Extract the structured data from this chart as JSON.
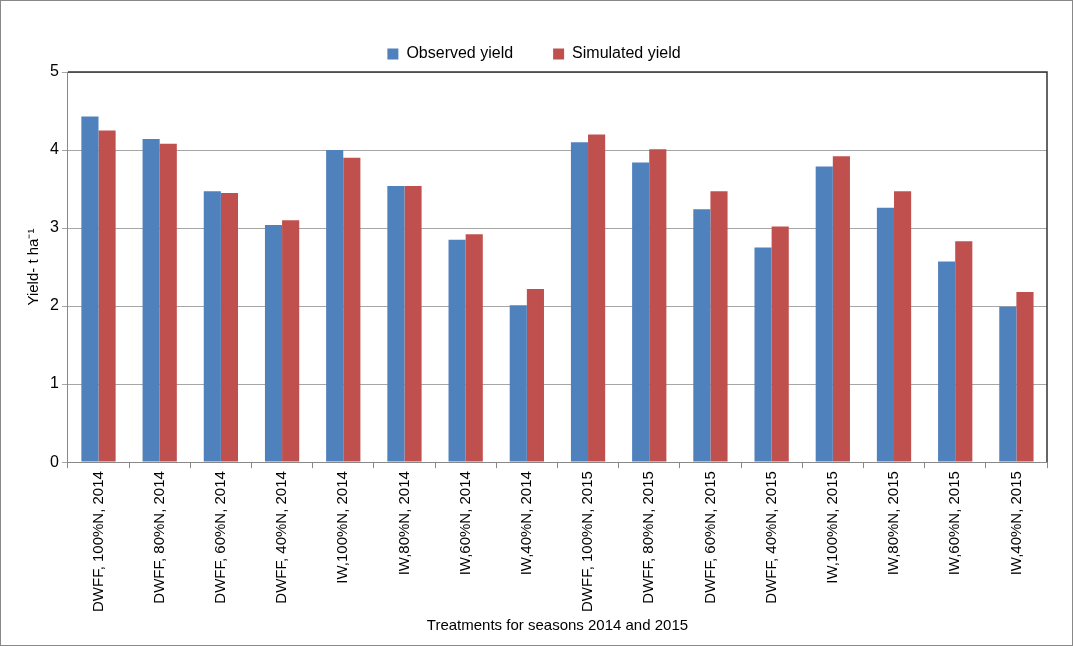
{
  "chart_data": {
    "type": "bar",
    "xlabel": "Treatments for seasons 2014 and 2015",
    "ylabel": "Yield- t ha⁻¹",
    "categories": [
      "DWFF, 100%N, 2014",
      "DWFF, 80%N, 2014",
      "DWFF, 60%N, 2014",
      "DWFF, 40%N, 2014",
      "IW,100%N, 2014",
      "IW,80%N, 2014",
      "IW,60%N, 2014",
      "IW,40%N, 2014",
      "DWFF, 100%N, 2015",
      "DWFF, 80%N, 2015",
      "DWFF, 60%N, 2015",
      "DWFF, 40%N, 2015",
      "IW,100%N, 2015",
      "IW,80%N, 2015",
      "IW,60%N, 2015",
      "IW,40%N, 2015"
    ],
    "series": [
      {
        "name": "Observed yield",
        "color": "#4f81bd",
        "values": [
          4.43,
          4.14,
          3.47,
          3.04,
          4.0,
          3.54,
          2.85,
          2.01,
          4.1,
          3.84,
          3.24,
          2.75,
          3.79,
          3.26,
          2.57,
          1.99
        ]
      },
      {
        "name": "Simulated yield",
        "color": "#c0504d",
        "values": [
          4.25,
          4.08,
          3.45,
          3.1,
          3.9,
          3.54,
          2.92,
          2.22,
          4.2,
          4.01,
          3.47,
          3.02,
          3.92,
          3.47,
          2.83,
          2.18
        ]
      }
    ],
    "ylim": [
      0,
      5
    ],
    "yticks": [
      0,
      1,
      2,
      3,
      4,
      5
    ],
    "grid": "y",
    "legend": "top"
  }
}
